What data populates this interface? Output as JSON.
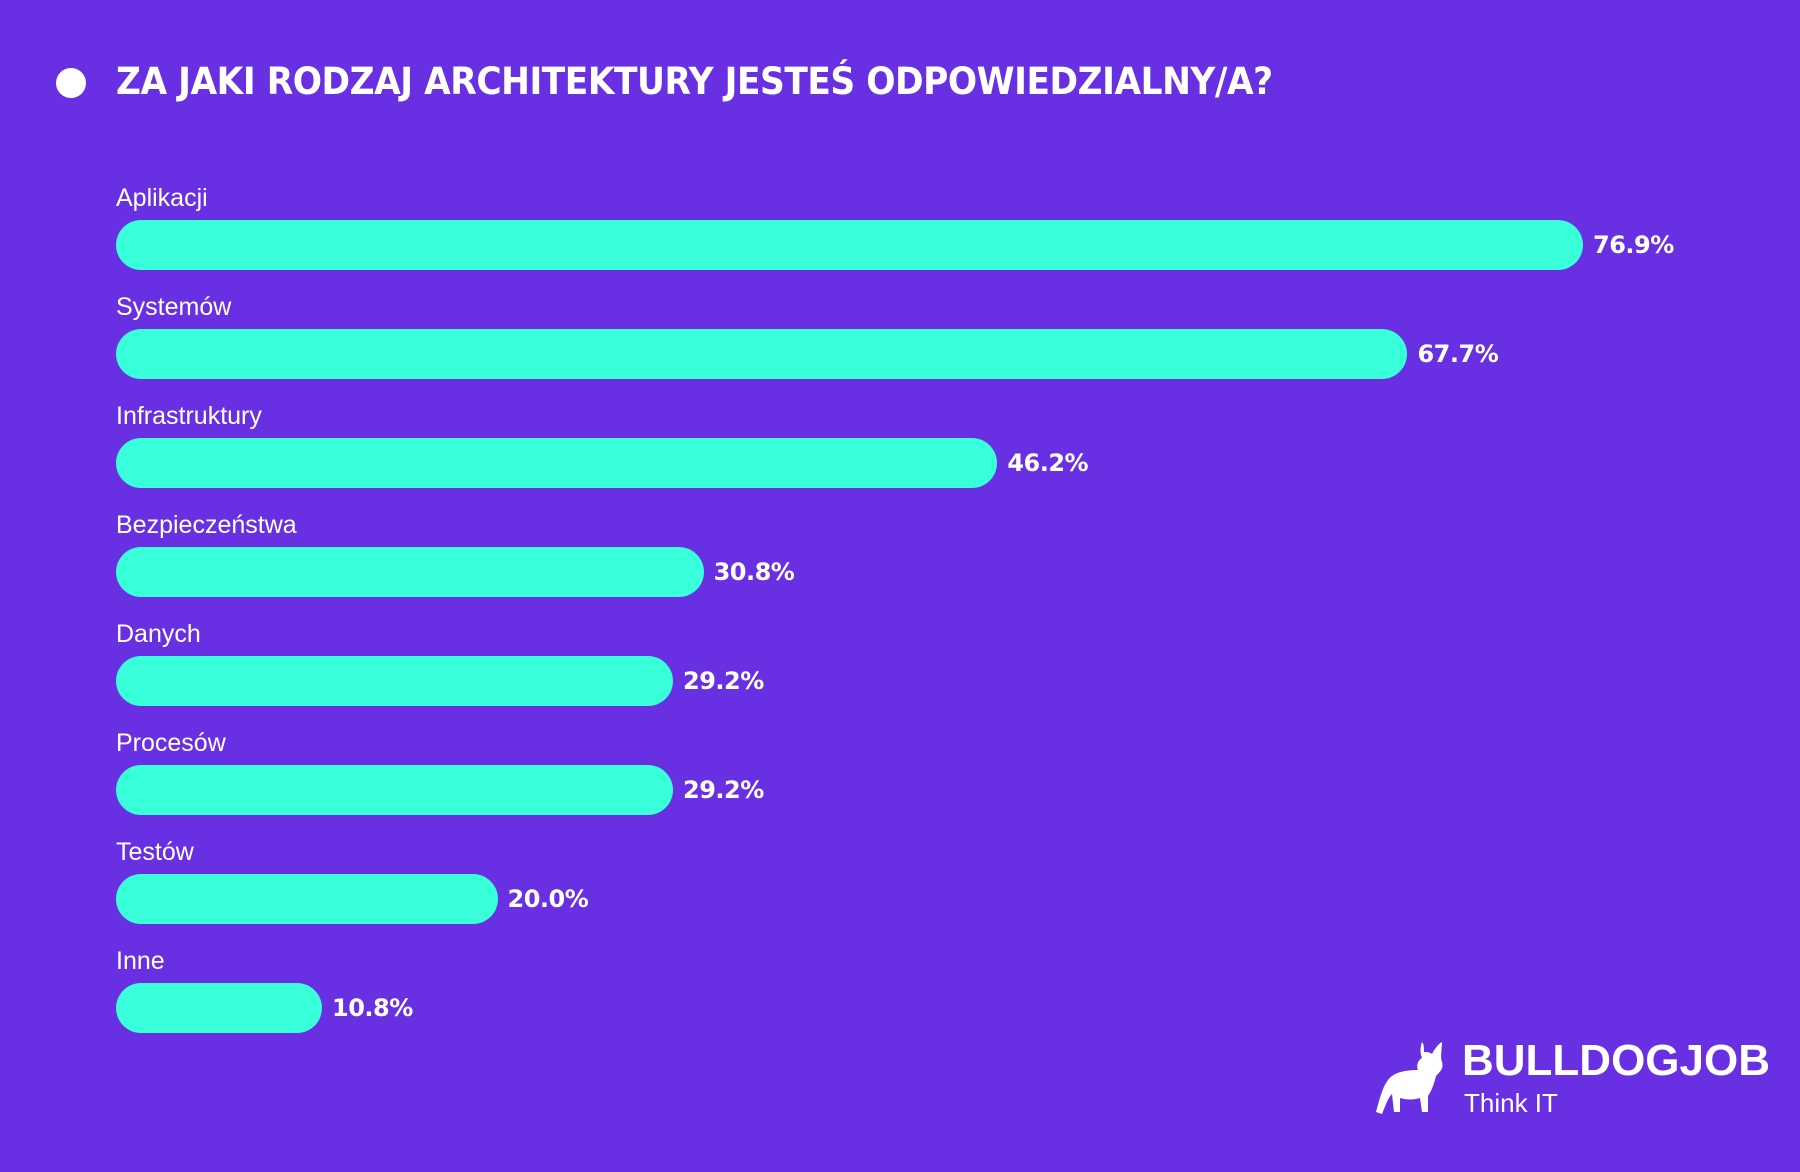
{
  "title": "ZA JAKI RODZAJ ARCHITEKTURY JESTEŚ ODPOWIEDZIALNY/A?",
  "colors": {
    "background": "#6930e3",
    "bar": "#38ffd9",
    "text": "#ffffff"
  },
  "chart_data": {
    "type": "bar",
    "orientation": "horizontal",
    "title": "ZA JAKI RODZAJ ARCHITEKTURY JESTEŚ ODPOWIEDZIALNY/A?",
    "categories": [
      "Aplikacji",
      "Systemów",
      "Infrastruktury",
      "Bezpieczeństwa",
      "Danych",
      "Procesów",
      "Testów",
      "Inne"
    ],
    "values": [
      76.9,
      67.7,
      46.2,
      30.8,
      29.2,
      29.2,
      20.0,
      10.8
    ],
    "value_labels": [
      "76.9%",
      "67.7%",
      "46.2%",
      "30.8%",
      "29.2%",
      "29.2%",
      "20.0%",
      "10.8%"
    ],
    "unit": "%",
    "grid": false,
    "legend": "none"
  },
  "logo": {
    "icon": "bulldog-icon",
    "brand": "BULLDOGJOB",
    "tagline": "Think IT"
  }
}
